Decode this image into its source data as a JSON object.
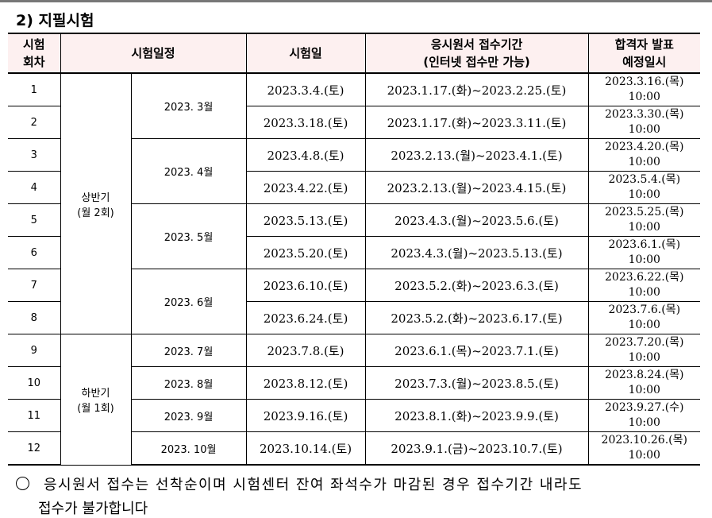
{
  "section_title": "2) 지필시험",
  "headers": {
    "round": [
      "시험",
      "회차"
    ],
    "schedule": "시험일정",
    "exam_date": "시험일",
    "application": [
      "응시원서 접수기간",
      "(인터넷 접수만 가능)"
    ],
    "announce": [
      "합격자 발표",
      "예정일시"
    ]
  },
  "halves": [
    {
      "label": [
        "상반기",
        "(월 2회)"
      ]
    },
    {
      "label": [
        "하반기",
        "(월 1회)"
      ]
    }
  ],
  "months": [
    "2023. 3월",
    "2023. 4월",
    "2023. 5월",
    "2023. 6월",
    "2023. 7월",
    "2023. 8월",
    "2023. 9월",
    "2023. 10월"
  ],
  "rows": [
    {
      "no": "1",
      "date": "2023.3.4.(토)",
      "period": "2023.1.17.(화)~2023.2.25.(토)",
      "announce": [
        "2023.3.16.(목)",
        "10:00"
      ]
    },
    {
      "no": "2",
      "date": "2023.3.18.(토)",
      "period": "2023.1.17.(화)~2023.3.11.(토)",
      "announce": [
        "2023.3.30.(목)",
        "10:00"
      ]
    },
    {
      "no": "3",
      "date": "2023.4.8.(토)",
      "period": "2023.2.13.(월)~2023.4.1.(토)",
      "announce": [
        "2023.4.20.(목)",
        "10:00"
      ]
    },
    {
      "no": "4",
      "date": "2023.4.22.(토)",
      "period": "2023.2.13.(월)~2023.4.15.(토)",
      "announce": [
        "2023.5.4.(목)",
        "10:00"
      ]
    },
    {
      "no": "5",
      "date": "2023.5.13.(토)",
      "period": "2023.4.3.(월)~2023.5.6.(토)",
      "announce": [
        "2023.5.25.(목)",
        "10:00"
      ]
    },
    {
      "no": "6",
      "date": "2023.5.20.(토)",
      "period": "2023.4.3.(월)~2023.5.13.(토)",
      "announce": [
        "2023.6.1.(목)",
        "10:00"
      ]
    },
    {
      "no": "7",
      "date": "2023.6.10.(토)",
      "period": "2023.5.2.(화)~2023.6.3.(토)",
      "announce": [
        "2023.6.22.(목)",
        "10:00"
      ]
    },
    {
      "no": "8",
      "date": "2023.6.24.(토)",
      "period": "2023.5.2.(화)~2023.6.17.(토)",
      "announce": [
        "2023.7.6.(목)",
        "10:00"
      ]
    },
    {
      "no": "9",
      "date": "2023.7.8.(토)",
      "period": "2023.6.1.(목)~2023.7.1.(토)",
      "announce": [
        "2023.7.20.(목)",
        "10:00"
      ]
    },
    {
      "no": "10",
      "date": "2023.8.12.(토)",
      "period": "2023.7.3.(월)~2023.8.5.(토)",
      "announce": [
        "2023.8.24.(목)",
        "10:00"
      ]
    },
    {
      "no": "11",
      "date": "2023.9.16.(토)",
      "period": "2023.8.1.(화)~2023.9.9.(토)",
      "announce": [
        "2023.9.27.(수)",
        "10:00"
      ]
    },
    {
      "no": "12",
      "date": "2023.10.14.(토)",
      "period": "2023.9.1.(금)~2023.10.7.(토)",
      "announce": [
        "2023.10.26.(목)",
        "10:00"
      ]
    }
  ],
  "note": "응시원서 접수는 선착순이며 시험센터 잔여 좌석수가 마감된 경우 접수기간 내라도",
  "note_cont": "접수가 불가합니다"
}
